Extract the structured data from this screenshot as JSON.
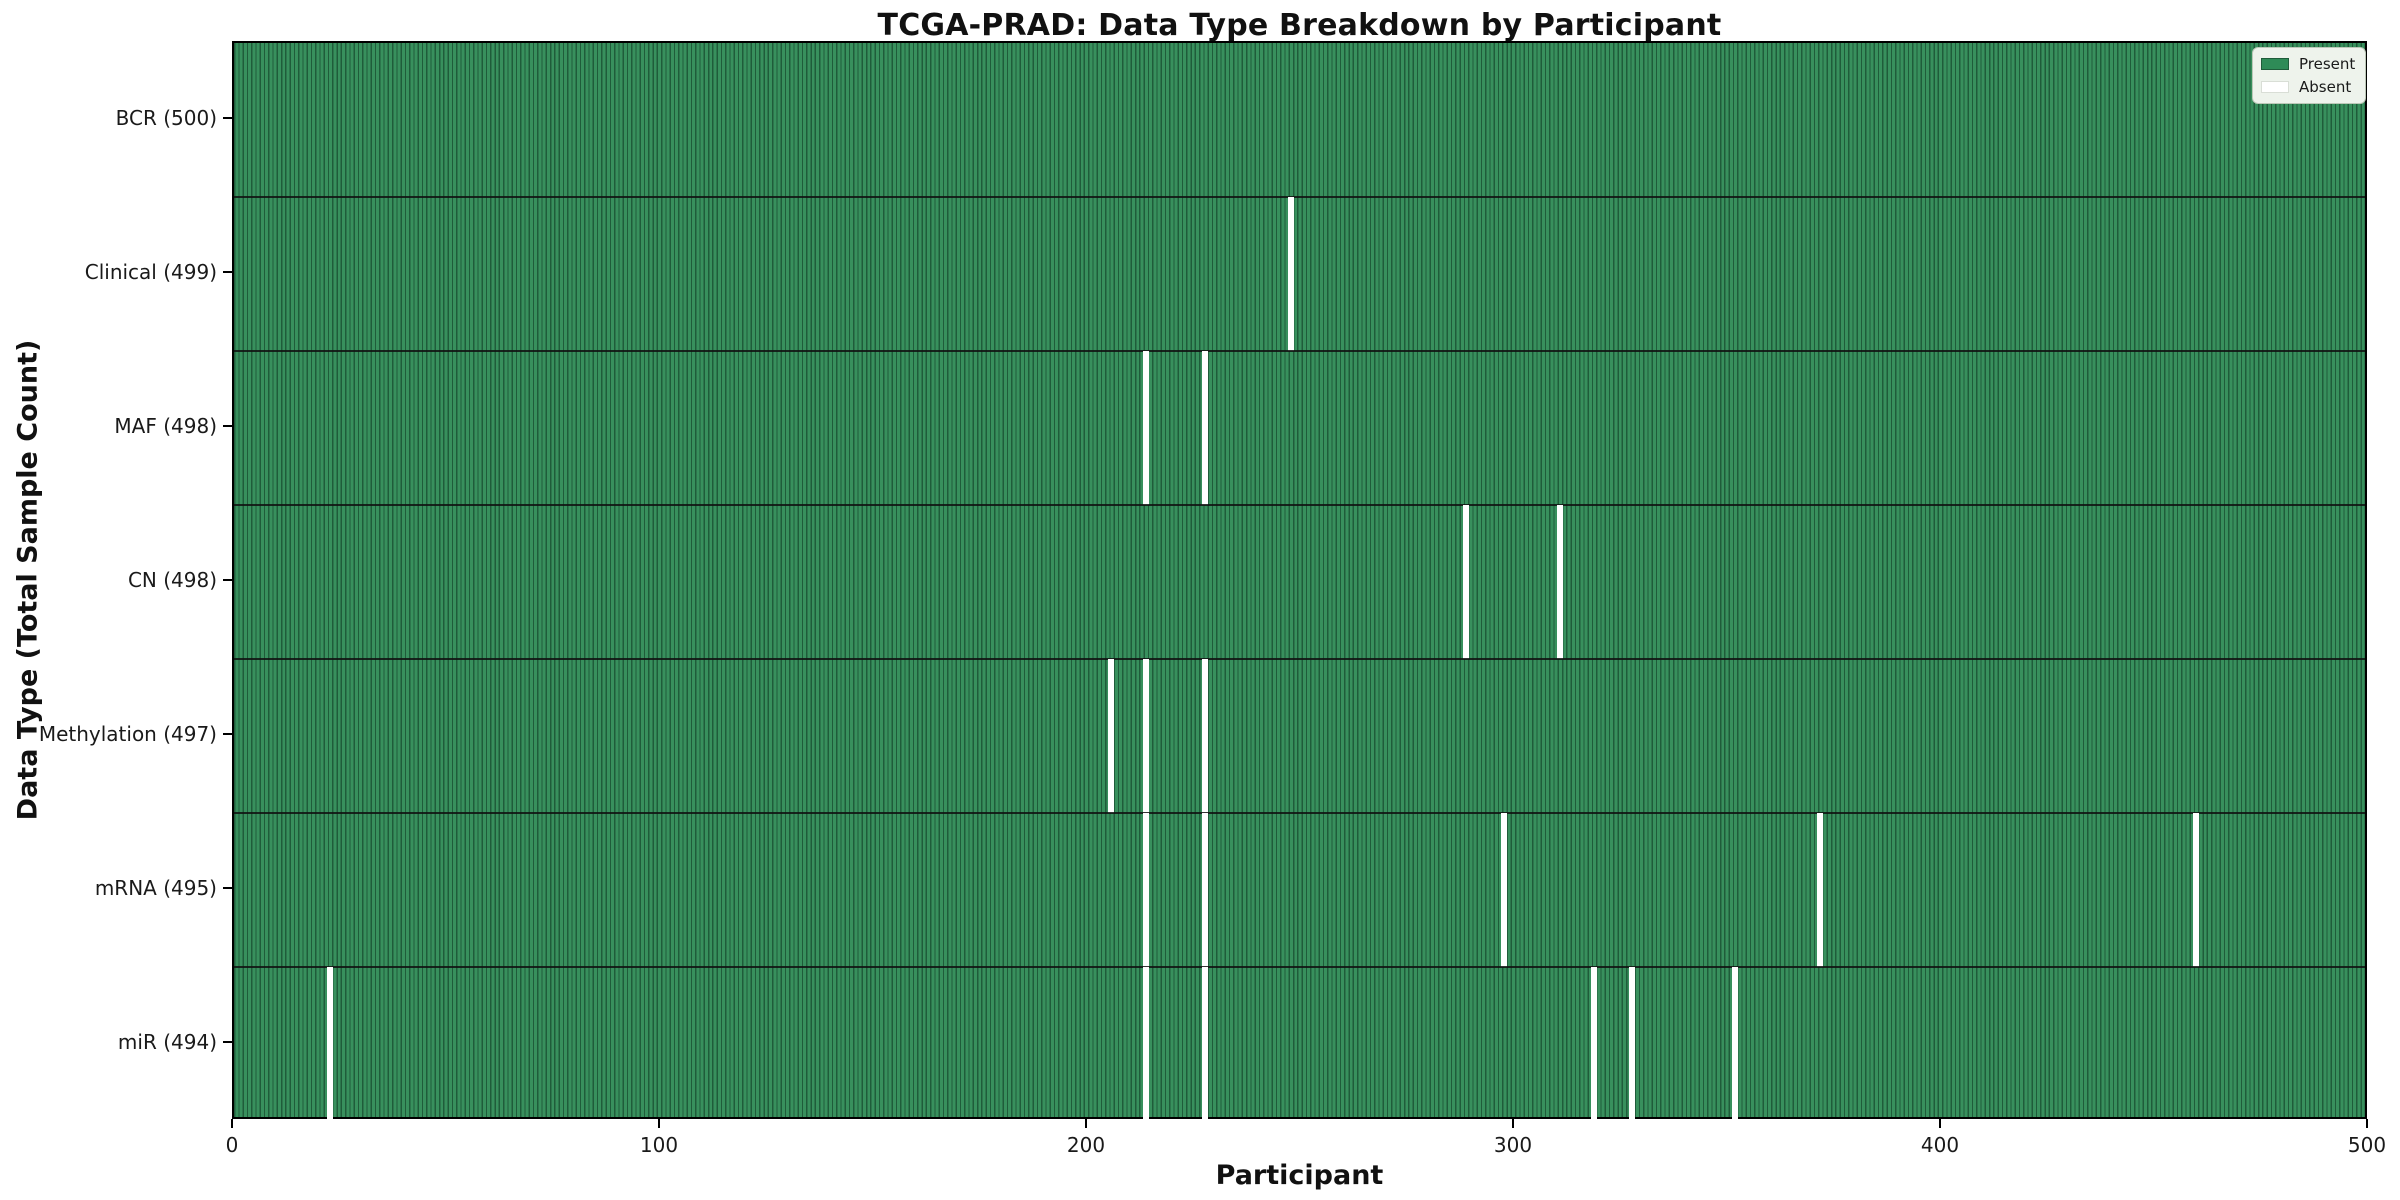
{
  "chart_data": {
    "type": "heatmap",
    "title": "TCGA-PRAD: Data Type Breakdown by Participant",
    "xlabel": "Participant",
    "ylabel": "Data Type (Total Sample Count)",
    "x_range": [
      0,
      500
    ],
    "x_ticks": [
      0,
      100,
      200,
      300,
      400,
      500
    ],
    "n_participants": 500,
    "legend": [
      {
        "label": "Present",
        "color": "#2e8b57"
      },
      {
        "label": "Absent",
        "color": "#ffffff"
      }
    ],
    "legend_position": "upper right",
    "grid": false,
    "rows": [
      {
        "label": "BCR (500)",
        "data_type": "BCR",
        "total": 500,
        "absent_participants": []
      },
      {
        "label": "Clinical (499)",
        "data_type": "Clinical",
        "total": 499,
        "absent_participants": [
          247
        ]
      },
      {
        "label": "MAF (498)",
        "data_type": "MAF",
        "total": 498,
        "absent_participants": [
          213,
          227
        ]
      },
      {
        "label": "CN (498)",
        "data_type": "CN",
        "total": 498,
        "absent_participants": [
          288,
          310
        ]
      },
      {
        "label": "Methylation (497)",
        "data_type": "Methylation",
        "total": 497,
        "absent_participants": [
          205,
          213,
          227
        ]
      },
      {
        "label": "mRNA (495)",
        "data_type": "mRNA",
        "total": 495,
        "absent_participants": [
          213,
          227,
          297,
          371,
          459
        ]
      },
      {
        "label": "miR (494)",
        "data_type": "miR",
        "total": 494,
        "absent_participants": [
          22,
          213,
          227,
          318,
          327,
          351
        ]
      }
    ],
    "colors": {
      "present_fill": "#38905d",
      "present_edge": "#1f5c3a",
      "absent": "#ffffff",
      "row_separator": "#111111",
      "spine": "#000000",
      "legend_bg": "#eef3ec",
      "legend_border": "#bcc8b8"
    }
  }
}
